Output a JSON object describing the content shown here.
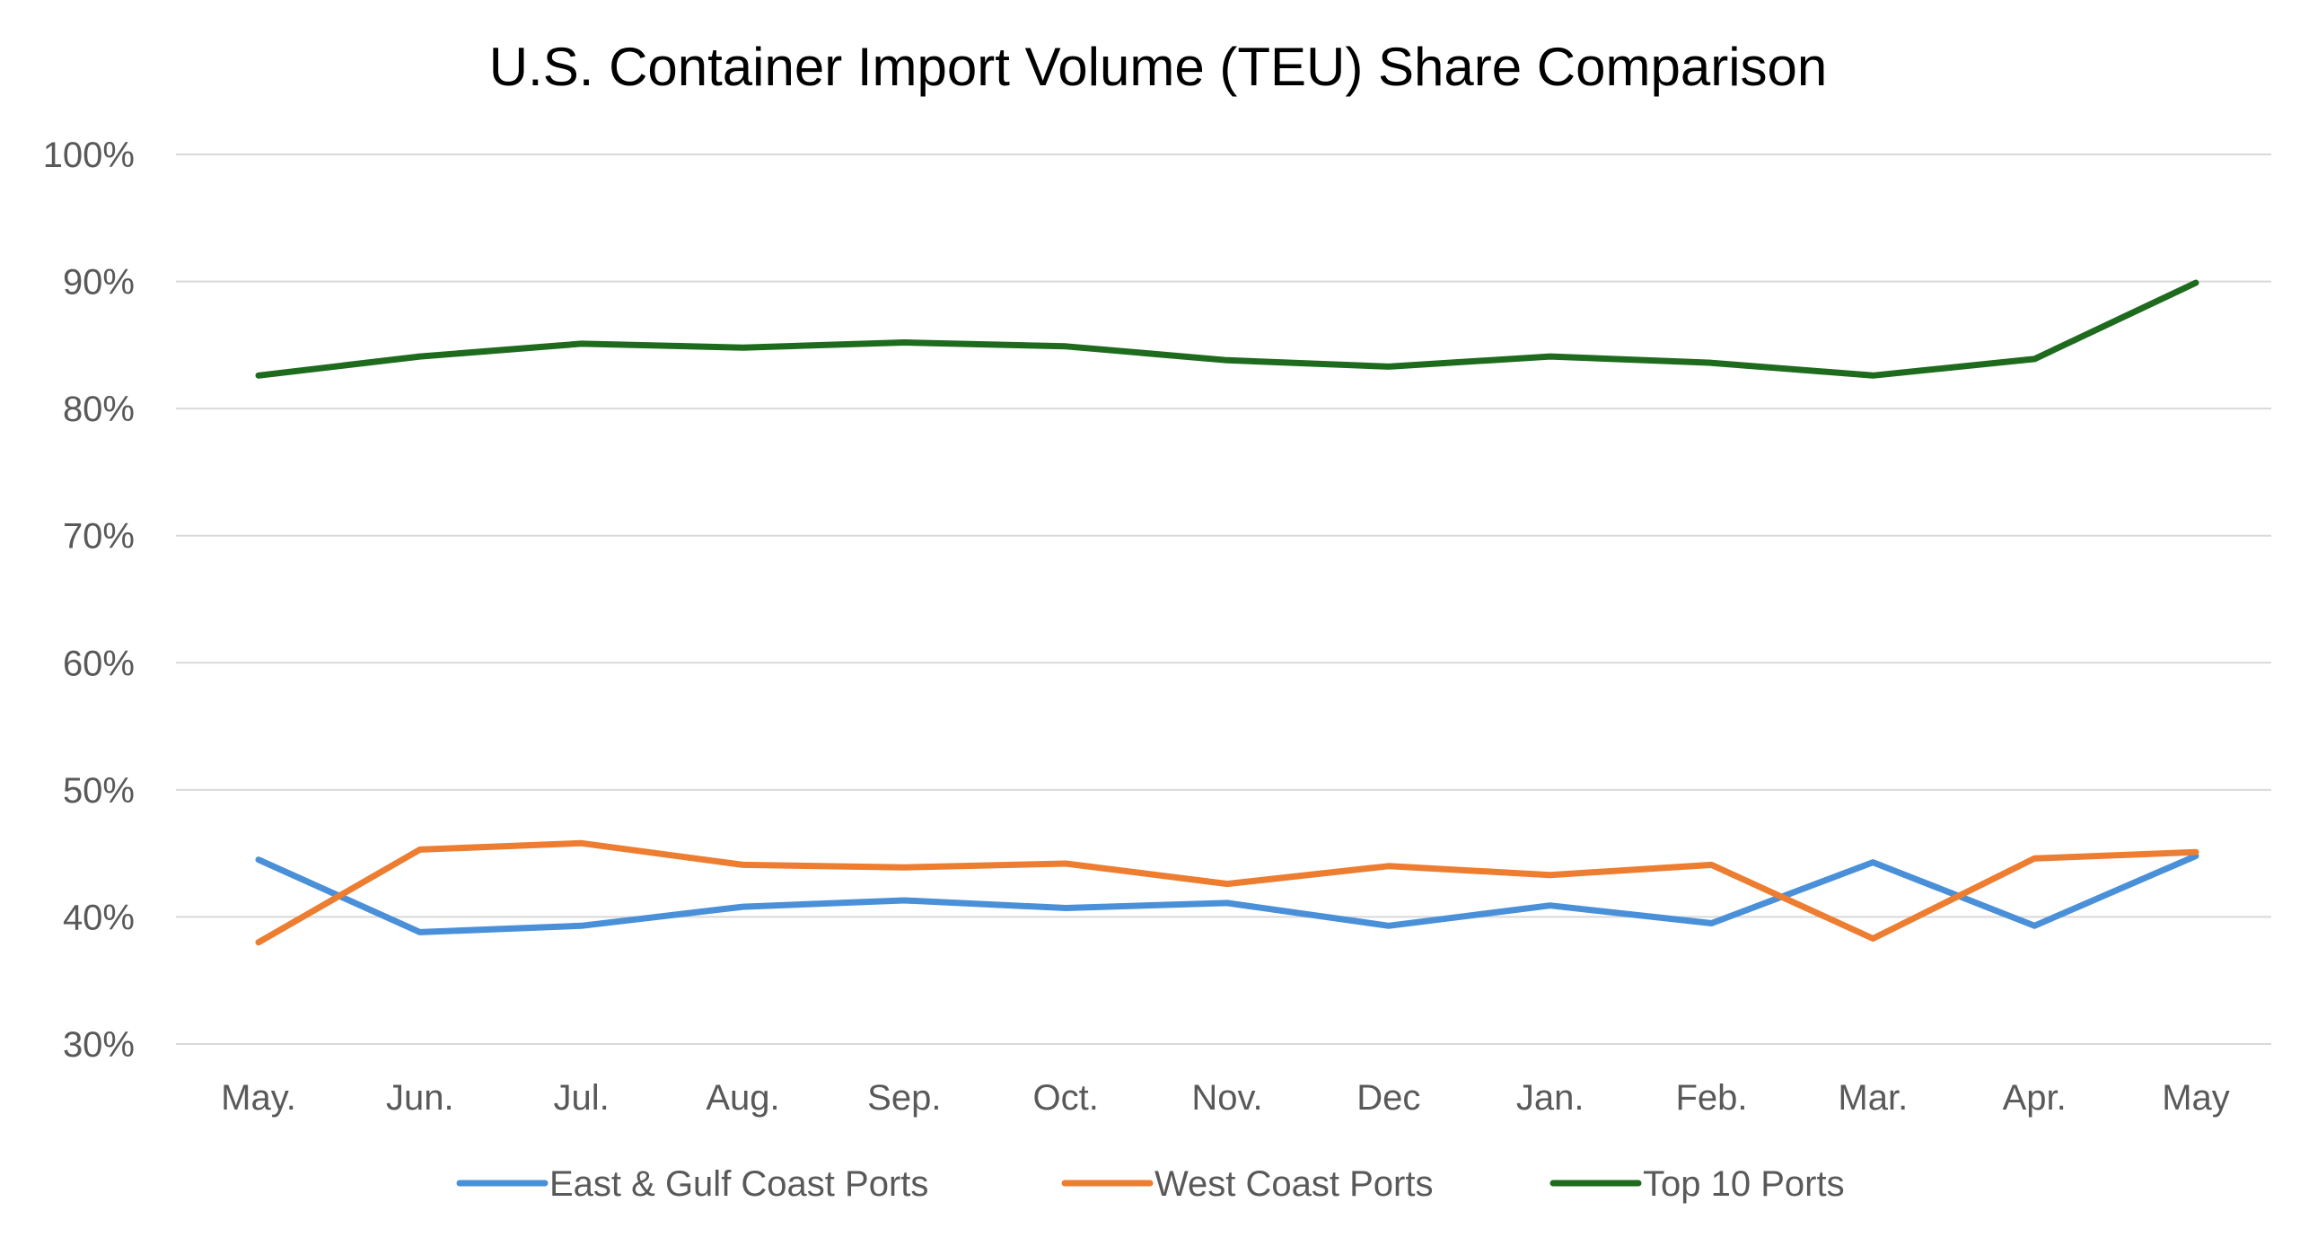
{
  "chart_data": {
    "type": "line",
    "title": "U.S. Container Import Volume (TEU) Share Comparison",
    "xlabel": "",
    "ylabel": "",
    "categories": [
      "May.",
      "Jun.",
      "Jul.",
      "Aug.",
      "Sep.",
      "Oct.",
      "Nov.",
      "Dec",
      "Jan.",
      "Feb.",
      "Mar.",
      "Apr.",
      "May"
    ],
    "ylim": [
      0.3,
      1.0
    ],
    "yticks": [
      0.3,
      0.4,
      0.5,
      0.6,
      0.7,
      0.8,
      0.9,
      1.0
    ],
    "ytick_labels": [
      "30%",
      "40%",
      "50%",
      "60%",
      "70%",
      "80%",
      "90%",
      "100%"
    ],
    "grid": true,
    "legend_position": "bottom",
    "series": [
      {
        "name": "East & Gulf Coast Ports",
        "color": "#4a90d9",
        "values": [
          0.445,
          0.388,
          0.393,
          0.408,
          0.413,
          0.407,
          0.411,
          0.393,
          0.409,
          0.395,
          0.443,
          0.393,
          0.448
        ]
      },
      {
        "name": "West Coast Ports",
        "color": "#ed7d31",
        "values": [
          0.38,
          0.453,
          0.458,
          0.441,
          0.439,
          0.442,
          0.426,
          0.44,
          0.433,
          0.441,
          0.383,
          0.446,
          0.451
        ]
      },
      {
        "name": "Top 10 Ports",
        "color": "#1e6b1e",
        "values": [
          0.826,
          0.841,
          0.851,
          0.848,
          0.852,
          0.849,
          0.838,
          0.833,
          0.841,
          0.836,
          0.826,
          0.839,
          0.899
        ]
      }
    ]
  }
}
